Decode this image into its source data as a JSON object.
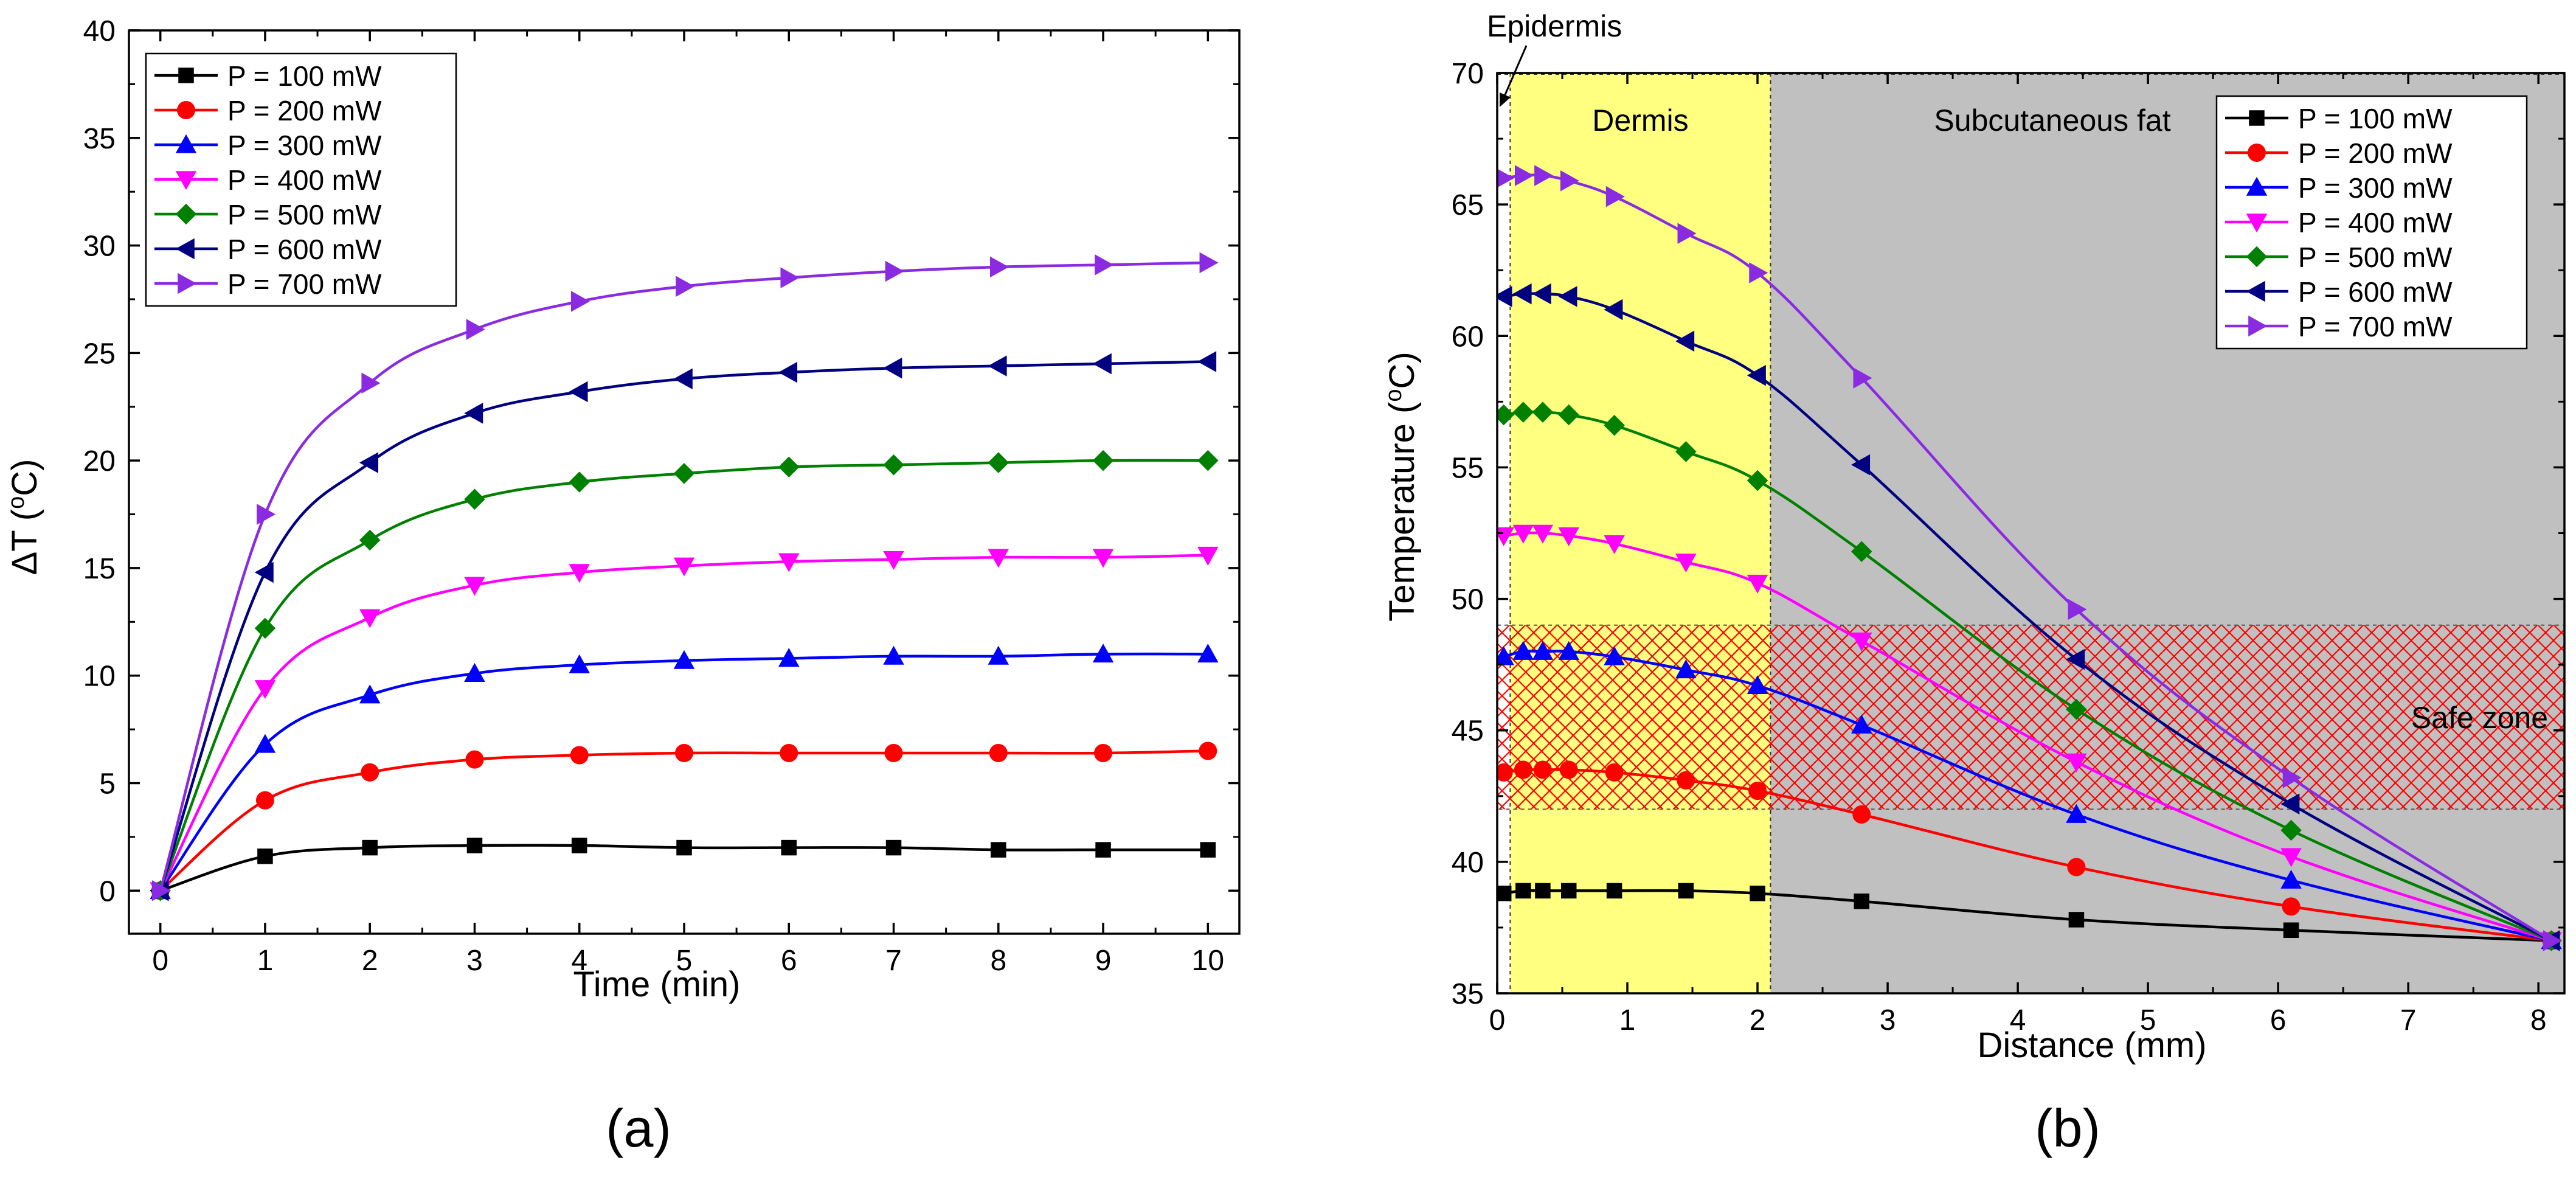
{
  "chart_data": [
    {
      "type": "line",
      "panel_label": "(a)",
      "xlabel": "Time (min)",
      "ylabel": "ΔT (",
      "ylabel_sup": "o",
      "ylabel_end": "C)",
      "xlim": [
        -0.3,
        10.3
      ],
      "ylim": [
        -2,
        40
      ],
      "xticks": [
        0,
        1,
        2,
        3,
        4,
        5,
        6,
        7,
        8,
        9,
        10
      ],
      "yticks": [
        0,
        5,
        10,
        15,
        20,
        25,
        30,
        35,
        40
      ],
      "legend_position": "top-left",
      "x": [
        0,
        1,
        2,
        3,
        4,
        5,
        6,
        7,
        8,
        9,
        10
      ],
      "series": [
        {
          "name": "P = 100 mW",
          "color": "#000000",
          "marker": "square",
          "values": [
            0,
            1.6,
            2.0,
            2.1,
            2.1,
            2.0,
            2.0,
            2.0,
            1.9,
            1.9,
            1.9
          ]
        },
        {
          "name": "P = 200 mW",
          "color": "#ff0000",
          "marker": "circle",
          "values": [
            0,
            4.2,
            5.5,
            6.1,
            6.3,
            6.4,
            6.4,
            6.4,
            6.4,
            6.4,
            6.5
          ]
        },
        {
          "name": "P = 300 mW",
          "color": "#0000ff",
          "marker": "triangle-up",
          "values": [
            0,
            6.8,
            9.1,
            10.1,
            10.5,
            10.7,
            10.8,
            10.9,
            10.9,
            11.0,
            11.0
          ]
        },
        {
          "name": "P = 400 mW",
          "color": "#ff00ff",
          "marker": "triangle-down",
          "values": [
            0,
            9.4,
            12.7,
            14.2,
            14.8,
            15.1,
            15.3,
            15.4,
            15.5,
            15.5,
            15.6
          ]
        },
        {
          "name": "P = 500 mW",
          "color": "#008000",
          "marker": "diamond",
          "values": [
            0,
            12.2,
            16.3,
            18.2,
            19.0,
            19.4,
            19.7,
            19.8,
            19.9,
            20.0,
            20.0
          ]
        },
        {
          "name": "P = 600 mW",
          "color": "#000080",
          "marker": "triangle-left",
          "values": [
            0,
            14.8,
            19.9,
            22.2,
            23.2,
            23.8,
            24.1,
            24.3,
            24.4,
            24.5,
            24.6
          ]
        },
        {
          "name": "P = 700 mW",
          "color": "#8a2be2",
          "marker": "triangle-right",
          "values": [
            0,
            17.5,
            23.6,
            26.1,
            27.4,
            28.1,
            28.5,
            28.8,
            29.0,
            29.1,
            29.2
          ]
        }
      ]
    },
    {
      "type": "line",
      "panel_label": "(b)",
      "xlabel": "Distance (mm)",
      "ylabel": "Temperature (",
      "ylabel_sup": "o",
      "ylabel_end": "C)",
      "xlim": [
        0,
        8.2
      ],
      "ylim": [
        35,
        70
      ],
      "xticks": [
        0,
        1,
        2,
        3,
        4,
        5,
        6,
        7,
        8
      ],
      "yticks": [
        35,
        40,
        45,
        50,
        55,
        60,
        65,
        70
      ],
      "legend_position": "top-right",
      "regions": [
        {
          "label": "",
          "from": 0,
          "to": 0.1,
          "color": "#ffffff"
        },
        {
          "label": "Dermis",
          "from": 0.1,
          "to": 2.1,
          "color": "#ffff80"
        },
        {
          "label": "Subcutaneous fat",
          "from": 2.1,
          "to": 8.2,
          "color": "#c0c0c0"
        }
      ],
      "epidermis_label": "Epidermis",
      "safe_zone": {
        "label": "Safe zone",
        "y_from": 42,
        "y_to": 49,
        "color": "#ff0000"
      },
      "x": [
        0.05,
        0.2,
        0.35,
        0.55,
        0.9,
        1.45,
        2.0,
        2.8,
        4.45,
        6.1,
        8.1
      ],
      "series": [
        {
          "name": "P = 100 mW",
          "color": "#000000",
          "marker": "square",
          "values": [
            38.8,
            38.9,
            38.9,
            38.9,
            38.9,
            38.9,
            38.8,
            38.5,
            37.8,
            37.4,
            37.0
          ]
        },
        {
          "name": "P = 200 mW",
          "color": "#ff0000",
          "marker": "circle",
          "values": [
            43.4,
            43.5,
            43.5,
            43.5,
            43.4,
            43.1,
            42.7,
            41.8,
            39.8,
            38.3,
            37.0
          ]
        },
        {
          "name": "P = 300 mW",
          "color": "#0000ff",
          "marker": "triangle-up",
          "values": [
            47.8,
            48.0,
            48.0,
            48.0,
            47.8,
            47.3,
            46.7,
            45.2,
            41.8,
            39.3,
            37.0
          ]
        },
        {
          "name": "P = 400 mW",
          "color": "#ff00ff",
          "marker": "triangle-down",
          "values": [
            52.4,
            52.5,
            52.5,
            52.4,
            52.1,
            51.4,
            50.6,
            48.4,
            43.8,
            40.2,
            37.0
          ]
        },
        {
          "name": "P = 500 mW",
          "color": "#008000",
          "marker": "diamond",
          "values": [
            57.0,
            57.1,
            57.1,
            57.0,
            56.6,
            55.6,
            54.5,
            51.8,
            45.8,
            41.2,
            37.0
          ]
        },
        {
          "name": "P = 600 mW",
          "color": "#000080",
          "marker": "triangle-left",
          "values": [
            61.5,
            61.6,
            61.6,
            61.5,
            61.0,
            59.8,
            58.5,
            55.1,
            47.7,
            42.2,
            37.0
          ]
        },
        {
          "name": "P = 700 mW",
          "color": "#8a2be2",
          "marker": "triangle-right",
          "values": [
            66.0,
            66.1,
            66.1,
            65.9,
            65.3,
            63.9,
            62.4,
            58.4,
            49.6,
            43.2,
            37.0
          ]
        }
      ]
    }
  ]
}
